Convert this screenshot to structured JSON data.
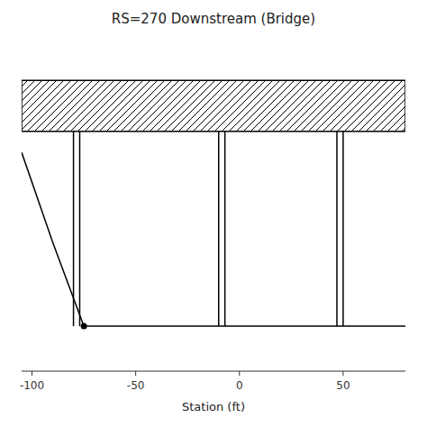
{
  "chart_data": {
    "type": "cross_section",
    "title": "RS=270 Downstream (Bridge)",
    "xlabel": "Station (ft)",
    "xlim": [
      -105,
      80
    ],
    "ylim": [
      -1.5,
      9.5
    ],
    "xticks": [
      -100,
      -50,
      0,
      50
    ],
    "tick_labels": "x",
    "color": "black",
    "bridge_deck": {
      "x": [
        -105,
        80
      ],
      "bottom": 6.5,
      "top": 8.2
    },
    "piers": [
      [
        -80,
        -77
      ],
      [
        -10,
        -7
      ],
      [
        47,
        50
      ]
    ],
    "pier_bottom": 0.0,
    "ground": {
      "x": [
        -105,
        -90,
        -75,
        80
      ],
      "y": [
        5.8,
        2.8,
        0.0,
        0.0
      ]
    },
    "marker_point": {
      "x": -75,
      "y": 0.0
    }
  }
}
